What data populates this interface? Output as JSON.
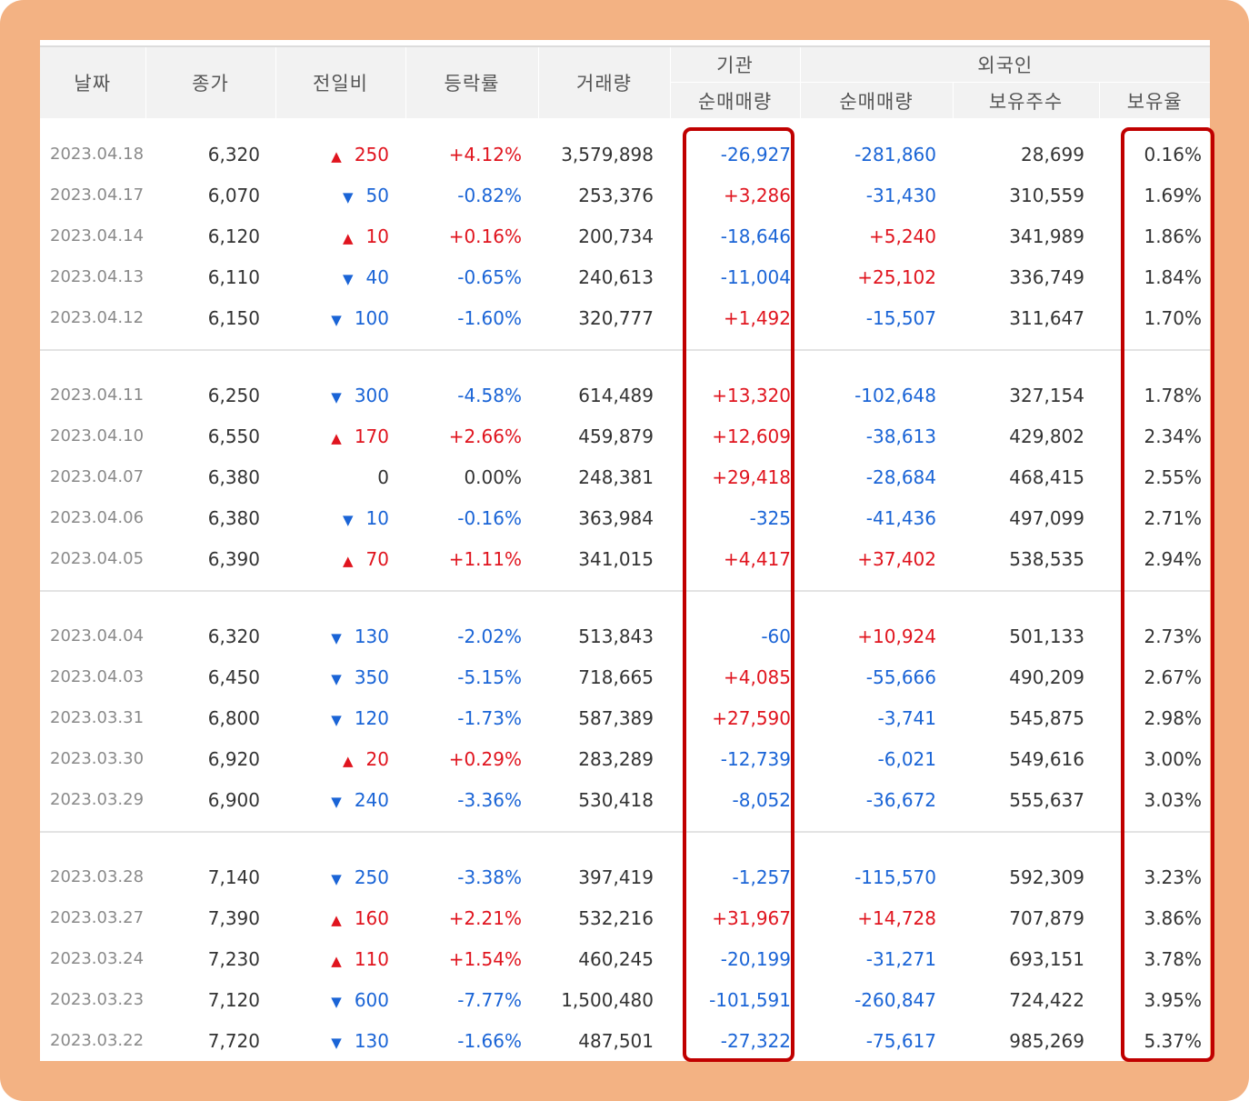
{
  "headers": {
    "date": "날짜",
    "close": "종가",
    "diff": "전일비",
    "rate": "등락률",
    "volume": "거래량",
    "institution": "기관",
    "institution_net": "순매매량",
    "foreign": "외국인",
    "foreign_net": "순매매량",
    "foreign_holdings": "보유주수",
    "foreign_ratio": "보유율"
  },
  "colors": {
    "up": "#e0141e",
    "down": "#1a64d6",
    "frame": "#f3b283",
    "highlight": "#c00000"
  },
  "groups": [
    [
      {
        "date": "2023.04.18",
        "close": "6,320",
        "dir": "up",
        "diff": "250",
        "rate": "+4.12%",
        "volume": "3,579,898",
        "inst": "-26,927",
        "fnet": "-281,860",
        "fhold": "28,699",
        "fpct": "0.16%"
      },
      {
        "date": "2023.04.17",
        "close": "6,070",
        "dir": "down",
        "diff": "50",
        "rate": "-0.82%",
        "volume": "253,376",
        "inst": "+3,286",
        "fnet": "-31,430",
        "fhold": "310,559",
        "fpct": "1.69%"
      },
      {
        "date": "2023.04.14",
        "close": "6,120",
        "dir": "up",
        "diff": "10",
        "rate": "+0.16%",
        "volume": "200,734",
        "inst": "-18,646",
        "fnet": "+5,240",
        "fhold": "341,989",
        "fpct": "1.86%"
      },
      {
        "date": "2023.04.13",
        "close": "6,110",
        "dir": "down",
        "diff": "40",
        "rate": "-0.65%",
        "volume": "240,613",
        "inst": "-11,004",
        "fnet": "+25,102",
        "fhold": "336,749",
        "fpct": "1.84%"
      },
      {
        "date": "2023.04.12",
        "close": "6,150",
        "dir": "down",
        "diff": "100",
        "rate": "-1.60%",
        "volume": "320,777",
        "inst": "+1,492",
        "fnet": "-15,507",
        "fhold": "311,647",
        "fpct": "1.70%"
      }
    ],
    [
      {
        "date": "2023.04.11",
        "close": "6,250",
        "dir": "down",
        "diff": "300",
        "rate": "-4.58%",
        "volume": "614,489",
        "inst": "+13,320",
        "fnet": "-102,648",
        "fhold": "327,154",
        "fpct": "1.78%"
      },
      {
        "date": "2023.04.10",
        "close": "6,550",
        "dir": "up",
        "diff": "170",
        "rate": "+2.66%",
        "volume": "459,879",
        "inst": "+12,609",
        "fnet": "-38,613",
        "fhold": "429,802",
        "fpct": "2.34%"
      },
      {
        "date": "2023.04.07",
        "close": "6,380",
        "dir": "none",
        "diff": "0",
        "rate": "0.00%",
        "volume": "248,381",
        "inst": "+29,418",
        "fnet": "-28,684",
        "fhold": "468,415",
        "fpct": "2.55%"
      },
      {
        "date": "2023.04.06",
        "close": "6,380",
        "dir": "down",
        "diff": "10",
        "rate": "-0.16%",
        "volume": "363,984",
        "inst": "-325",
        "fnet": "-41,436",
        "fhold": "497,099",
        "fpct": "2.71%"
      },
      {
        "date": "2023.04.05",
        "close": "6,390",
        "dir": "up",
        "diff": "70",
        "rate": "+1.11%",
        "volume": "341,015",
        "inst": "+4,417",
        "fnet": "+37,402",
        "fhold": "538,535",
        "fpct": "2.94%"
      }
    ],
    [
      {
        "date": "2023.04.04",
        "close": "6,320",
        "dir": "down",
        "diff": "130",
        "rate": "-2.02%",
        "volume": "513,843",
        "inst": "-60",
        "fnet": "+10,924",
        "fhold": "501,133",
        "fpct": "2.73%"
      },
      {
        "date": "2023.04.03",
        "close": "6,450",
        "dir": "down",
        "diff": "350",
        "rate": "-5.15%",
        "volume": "718,665",
        "inst": "+4,085",
        "fnet": "-55,666",
        "fhold": "490,209",
        "fpct": "2.67%"
      },
      {
        "date": "2023.03.31",
        "close": "6,800",
        "dir": "down",
        "diff": "120",
        "rate": "-1.73%",
        "volume": "587,389",
        "inst": "+27,590",
        "fnet": "-3,741",
        "fhold": "545,875",
        "fpct": "2.98%"
      },
      {
        "date": "2023.03.30",
        "close": "6,920",
        "dir": "up",
        "diff": "20",
        "rate": "+0.29%",
        "volume": "283,289",
        "inst": "-12,739",
        "fnet": "-6,021",
        "fhold": "549,616",
        "fpct": "3.00%"
      },
      {
        "date": "2023.03.29",
        "close": "6,900",
        "dir": "down",
        "diff": "240",
        "rate": "-3.36%",
        "volume": "530,418",
        "inst": "-8,052",
        "fnet": "-36,672",
        "fhold": "555,637",
        "fpct": "3.03%"
      }
    ],
    [
      {
        "date": "2023.03.28",
        "close": "7,140",
        "dir": "down",
        "diff": "250",
        "rate": "-3.38%",
        "volume": "397,419",
        "inst": "-1,257",
        "fnet": "-115,570",
        "fhold": "592,309",
        "fpct": "3.23%"
      },
      {
        "date": "2023.03.27",
        "close": "7,390",
        "dir": "up",
        "diff": "160",
        "rate": "+2.21%",
        "volume": "532,216",
        "inst": "+31,967",
        "fnet": "+14,728",
        "fhold": "707,879",
        "fpct": "3.86%"
      },
      {
        "date": "2023.03.24",
        "close": "7,230",
        "dir": "up",
        "diff": "110",
        "rate": "+1.54%",
        "volume": "460,245",
        "inst": "-20,199",
        "fnet": "-31,271",
        "fhold": "693,151",
        "fpct": "3.78%"
      },
      {
        "date": "2023.03.23",
        "close": "7,120",
        "dir": "down",
        "diff": "600",
        "rate": "-7.77%",
        "volume": "1,500,480",
        "inst": "-101,591",
        "fnet": "-260,847",
        "fhold": "724,422",
        "fpct": "3.95%"
      },
      {
        "date": "2023.03.22",
        "close": "7,720",
        "dir": "down",
        "diff": "130",
        "rate": "-1.66%",
        "volume": "487,501",
        "inst": "-27,322",
        "fnet": "-75,617",
        "fhold": "985,269",
        "fpct": "5.37%"
      }
    ]
  ]
}
